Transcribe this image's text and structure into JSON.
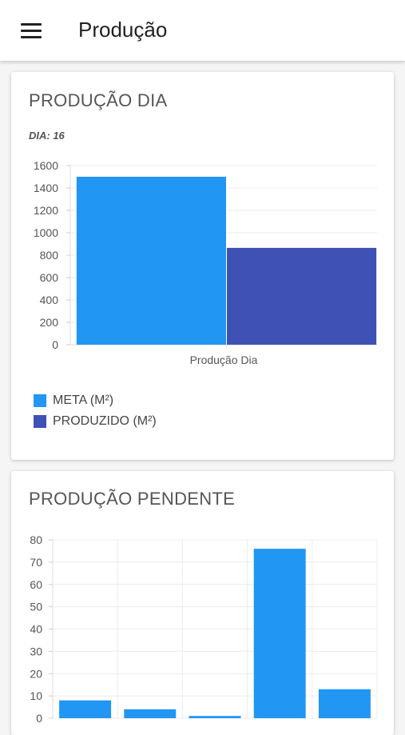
{
  "appbar": {
    "title": "Produção",
    "menu_icon": "menu-icon"
  },
  "card_day": {
    "title": "PRODUÇÃO DIA",
    "day_label": "DIA: 16"
  },
  "card_pending": {
    "title": "PRODUÇÃO PENDENTE"
  },
  "colors": {
    "meta": "#2196f3",
    "produzido": "#3f51b5"
  },
  "chart_data": [
    {
      "type": "bar",
      "categories": [
        "Produção Dia"
      ],
      "series": [
        {
          "name": "META (M²)",
          "values": [
            1500
          ]
        },
        {
          "name": "PRODUZIDO (M²)",
          "values": [
            865
          ]
        }
      ],
      "title": "",
      "xlabel": "",
      "ylabel": "",
      "ylim": [
        0,
        1600
      ],
      "yticks": [
        "0",
        "200",
        "400",
        "600",
        "800",
        "1000",
        "1200",
        "1400",
        "1600"
      ],
      "legend": "bottom-left",
      "grid": true
    },
    {
      "type": "bar",
      "categories": [
        "",
        "",
        "",
        "",
        ""
      ],
      "values": [
        8,
        4,
        1,
        76,
        13
      ],
      "title": "",
      "xlabel": "",
      "ylabel": "",
      "ylim": [
        0,
        80
      ],
      "yticks": [
        "0",
        "10",
        "20",
        "30",
        "40",
        "50",
        "60",
        "70",
        "80"
      ],
      "grid": true
    }
  ]
}
